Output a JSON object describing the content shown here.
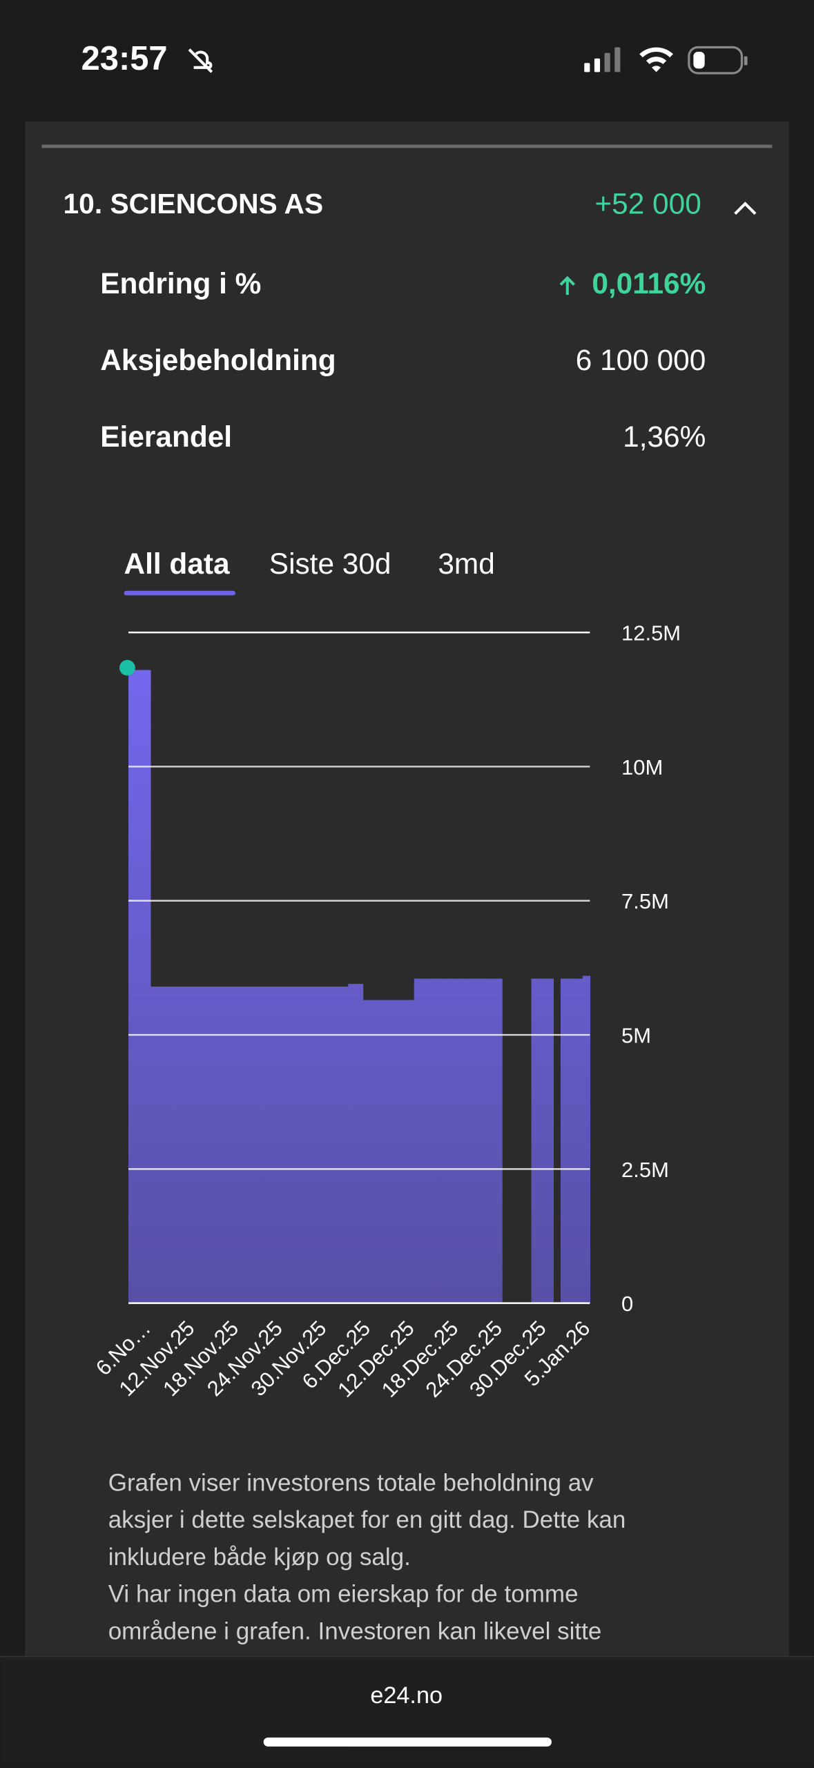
{
  "status": {
    "time": "23:57"
  },
  "header": {
    "title": "10. SCIENCONS AS",
    "change": "+52 000"
  },
  "rows": [
    {
      "label": "Endring i %",
      "value": "0,0116%"
    },
    {
      "label": "Aksjebeholdning",
      "value": "6 100 000"
    },
    {
      "label": "Eierandel",
      "value": "1,36%"
    }
  ],
  "tabs": [
    "All data",
    "Siste 30d",
    "3md"
  ],
  "chart_data": {
    "type": "step-area",
    "categories": [
      "6.No…",
      null,
      null,
      null,
      null,
      null,
      "12.Nov.25",
      null,
      null,
      null,
      null,
      null,
      "18.Nov.25",
      null,
      null,
      null,
      null,
      null,
      "24.Nov.25",
      null,
      null,
      null,
      null,
      null,
      "30.Nov.25",
      null,
      null,
      null,
      null,
      null,
      "6.Dec.25",
      null,
      null,
      null,
      null,
      null,
      "12.Dec.25",
      null,
      null,
      null,
      null,
      null,
      "18.Dec.25",
      null,
      null,
      null,
      null,
      null,
      "24.Dec.25",
      null,
      null,
      null,
      null,
      null,
      "30.Dec.25",
      null,
      null,
      null,
      null,
      null,
      "5.Jan.26",
      null,
      null
    ],
    "values": [
      11.8,
      11.8,
      11.8,
      5.9,
      5.9,
      5.9,
      5.9,
      5.9,
      5.9,
      5.9,
      5.9,
      5.9,
      5.9,
      5.9,
      5.9,
      5.9,
      5.9,
      5.9,
      5.9,
      5.9,
      5.9,
      5.9,
      5.9,
      5.9,
      5.9,
      5.9,
      5.9,
      5.9,
      5.9,
      5.9,
      5.95,
      5.95,
      5.65,
      5.65,
      5.65,
      5.65,
      5.65,
      5.65,
      5.65,
      6.048,
      6.048,
      6.048,
      6.048,
      6.048,
      6.048,
      6.048,
      6.048,
      6.048,
      6.048,
      6.048,
      6.048,
      null,
      null,
      null,
      null,
      6.048,
      6.048,
      6.048,
      null,
      6.048,
      6.048,
      6.048,
      6.1
    ],
    "color": "#7569f0",
    "color_bottom": "#5750a6",
    "marker_color": "#1cbfa6",
    "ylim": [
      0,
      12.5
    ],
    "yticks": [
      0,
      {
        "value": 2.5,
        "label": "2.5M"
      },
      {
        "value": 5,
        "label": "5M"
      },
      {
        "value": 7.5,
        "label": "7.5M"
      },
      {
        "value": 10,
        "label": "10M"
      },
      {
        "value": 12.5,
        "label": "12.5M"
      }
    ],
    "grid": true
  },
  "note": [
    "Grafen viser investorens totale beholdning av",
    "aksjer i dette selskapet for en gitt dag. Dette kan",
    "inkludere både kjøp og salg.",
    "Vi har ingen data om eierskap for de tomme",
    "områdene i grafen. Investoren kan likevel sitte"
  ],
  "footer": {
    "url": "e24.no"
  }
}
